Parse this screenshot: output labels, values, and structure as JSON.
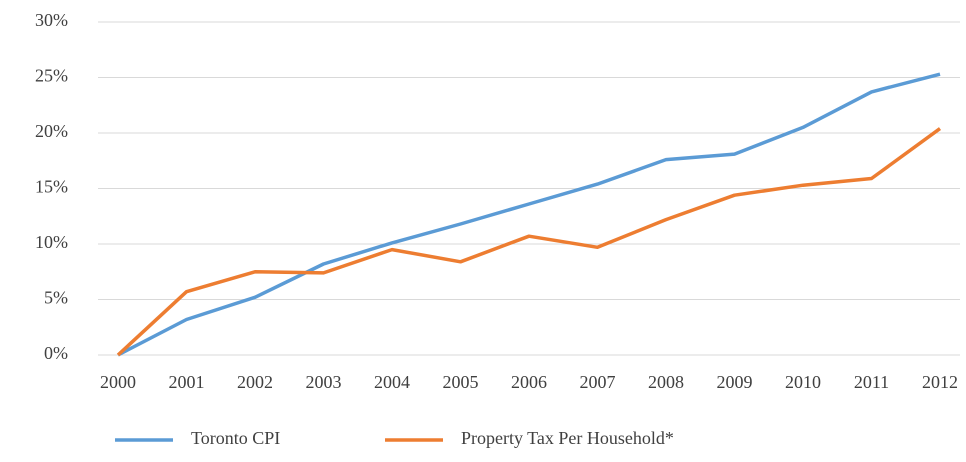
{
  "chart_data": {
    "type": "line",
    "categories": [
      "2000",
      "2001",
      "2002",
      "2003",
      "2004",
      "2005",
      "2006",
      "2007",
      "2008",
      "2009",
      "2010",
      "2011",
      "2012"
    ],
    "series": [
      {
        "name": "Toronto CPI",
        "color": "#5b9bd5",
        "values": [
          0,
          3.2,
          5.2,
          8.2,
          10.1,
          11.8,
          13.6,
          15.4,
          17.6,
          18.1,
          20.5,
          23.7,
          25.3
        ]
      },
      {
        "name": "Property Tax Per Household*",
        "color": "#ed7d31",
        "values": [
          0,
          5.7,
          7.5,
          7.4,
          9.5,
          8.4,
          10.7,
          9.7,
          12.2,
          14.4,
          15.3,
          15.9,
          20.4
        ]
      }
    ],
    "ylim": [
      0,
      30
    ],
    "yticks": [
      {
        "value": 0,
        "label": "0%"
      },
      {
        "value": 5,
        "label": "5%"
      },
      {
        "value": 10,
        "label": "10%"
      },
      {
        "value": 15,
        "label": "15%"
      },
      {
        "value": 20,
        "label": "20%"
      },
      {
        "value": 25,
        "label": "25%"
      },
      {
        "value": 30,
        "label": "30%"
      }
    ],
    "grid": true,
    "legend": "bottom"
  }
}
